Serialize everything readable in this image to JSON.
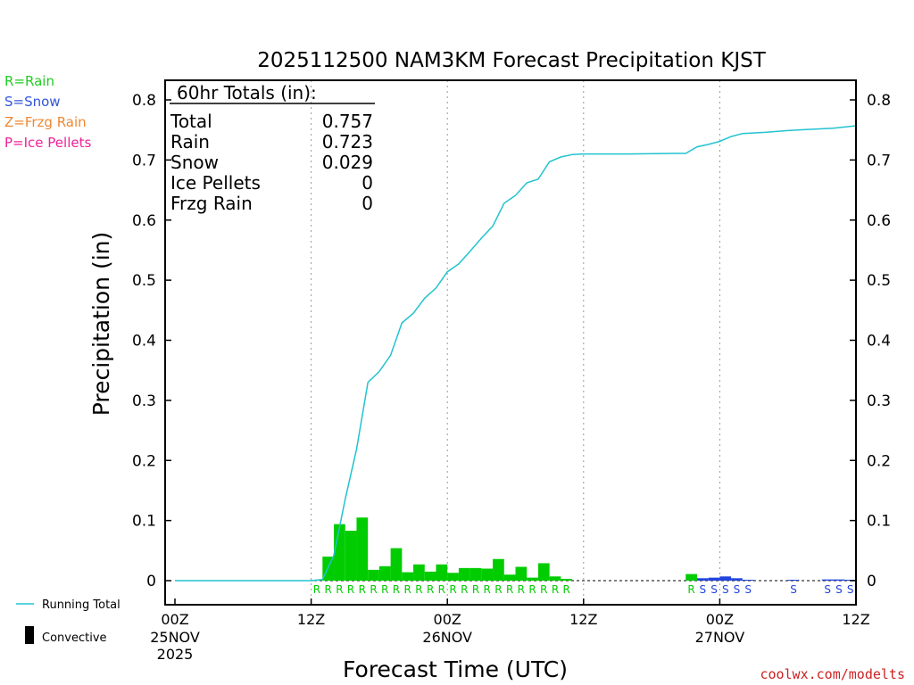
{
  "chart_data": {
    "type": "bar",
    "title": "2025112500 NAM3KM Forecast Precipitation KJST",
    "xlabel": "Forecast Time (UTC)",
    "ylabel": "Precipitation (in)",
    "ylim": [
      0,
      0.84
    ],
    "xlim_hours": [
      0,
      60
    ],
    "y_ticks": [
      "0",
      "0.1",
      "0.2",
      "0.3",
      "0.4",
      "0.5",
      "0.6",
      "0.7",
      "0.8"
    ],
    "x_ticks": [
      {
        "hour": 0,
        "label": "00Z",
        "sub": "25NOV",
        "sub2": "2025"
      },
      {
        "hour": 12,
        "label": "12Z",
        "sub": "",
        "sub2": ""
      },
      {
        "hour": 24,
        "label": "00Z",
        "sub": "26NOV",
        "sub2": ""
      },
      {
        "hour": 36,
        "label": "12Z",
        "sub": "",
        "sub2": ""
      },
      {
        "hour": 48,
        "label": "00Z",
        "sub": "27NOV",
        "sub2": ""
      },
      {
        "hour": 60,
        "label": "12Z",
        "sub": "",
        "sub2": ""
      }
    ],
    "totals": {
      "heading": "60hr Totals (in):",
      "rows": [
        {
          "label": "Total",
          "value": "0.757"
        },
        {
          "label": "Rain",
          "value": "0.723"
        },
        {
          "label": "Snow",
          "value": "0.029"
        },
        {
          "label": "Ice Pellets",
          "value": "0"
        },
        {
          "label": "Frzg Rain",
          "value": "0"
        }
      ]
    },
    "type_legend": [
      {
        "label": "R=Rain",
        "color": "#22cc22"
      },
      {
        "label": "S=Snow",
        "color": "#3355dd"
      },
      {
        "label": "Z=Frzg Rain",
        "color": "#ee8833"
      },
      {
        "label": "P=Ice Pellets",
        "color": "#ee2299"
      }
    ],
    "series_legend": [
      {
        "label": "Running Total",
        "kind": "line",
        "color": "#22c3cf"
      },
      {
        "label": "Convective",
        "kind": "bar",
        "color": "#000000"
      }
    ],
    "hourly_bars": [
      {
        "hour": 13,
        "value": 0.001,
        "type": "R"
      },
      {
        "hour": 14,
        "value": 0.04,
        "type": "R"
      },
      {
        "hour": 15,
        "value": 0.094,
        "type": "R"
      },
      {
        "hour": 16,
        "value": 0.083,
        "type": "R"
      },
      {
        "hour": 17,
        "value": 0.105,
        "type": "R"
      },
      {
        "hour": 18,
        "value": 0.018,
        "type": "R"
      },
      {
        "hour": 19,
        "value": 0.024,
        "type": "R"
      },
      {
        "hour": 20,
        "value": 0.054,
        "type": "R"
      },
      {
        "hour": 21,
        "value": 0.014,
        "type": "R"
      },
      {
        "hour": 22,
        "value": 0.027,
        "type": "R"
      },
      {
        "hour": 23,
        "value": 0.015,
        "type": "R"
      },
      {
        "hour": 24,
        "value": 0.027,
        "type": "R"
      },
      {
        "hour": 25,
        "value": 0.013,
        "type": "R"
      },
      {
        "hour": 26,
        "value": 0.021,
        "type": "R"
      },
      {
        "hour": 27,
        "value": 0.021,
        "type": "R"
      },
      {
        "hour": 28,
        "value": 0.02,
        "type": "R"
      },
      {
        "hour": 29,
        "value": 0.036,
        "type": "R"
      },
      {
        "hour": 30,
        "value": 0.01,
        "type": "R"
      },
      {
        "hour": 31,
        "value": 0.023,
        "type": "R"
      },
      {
        "hour": 32,
        "value": 0.005,
        "type": "R"
      },
      {
        "hour": 33,
        "value": 0.029,
        "type": "R"
      },
      {
        "hour": 34,
        "value": 0.007,
        "type": "R"
      },
      {
        "hour": 35,
        "value": 0.003,
        "type": "R"
      },
      {
        "hour": 46,
        "value": 0.011,
        "type": "R"
      },
      {
        "hour": 47,
        "value": 0.004,
        "type": "S"
      },
      {
        "hour": 48,
        "value": 0.005,
        "type": "S"
      },
      {
        "hour": 49,
        "value": 0.007,
        "type": "S"
      },
      {
        "hour": 50,
        "value": 0.004,
        "type": "S"
      },
      {
        "hour": 51,
        "value": 0.001,
        "type": "S"
      },
      {
        "hour": 55,
        "value": 0.001,
        "type": "S"
      },
      {
        "hour": 58,
        "value": 0.002,
        "type": "S"
      },
      {
        "hour": 59,
        "value": 0.002,
        "type": "S"
      },
      {
        "hour": 60,
        "value": 0.001,
        "type": "S"
      }
    ],
    "running_total": {
      "hours": [
        0,
        12,
        13,
        14,
        15,
        16,
        17,
        18,
        19,
        20,
        21,
        22,
        23,
        24,
        25,
        26,
        27,
        28,
        29,
        30,
        31,
        32,
        33,
        34,
        35,
        36,
        40,
        44,
        45,
        46,
        47,
        48,
        49,
        50,
        52,
        54,
        56,
        58,
        60
      ],
      "values": [
        0,
        0,
        0.002,
        0.042,
        0.136,
        0.219,
        0.33,
        0.348,
        0.375,
        0.429,
        0.445,
        0.47,
        0.487,
        0.514,
        0.527,
        0.548,
        0.57,
        0.59,
        0.628,
        0.641,
        0.662,
        0.668,
        0.697,
        0.705,
        0.709,
        0.71,
        0.71,
        0.711,
        0.711,
        0.722,
        0.726,
        0.731,
        0.739,
        0.744,
        0.746,
        0.749,
        0.751,
        0.753,
        0.757
      ]
    }
  },
  "watermark": "coolwx.com/modelts",
  "colors": {
    "rain": "#00cc00",
    "snow": "#2244dd",
    "running_total": "#22c3cf",
    "grid": "#999999"
  }
}
